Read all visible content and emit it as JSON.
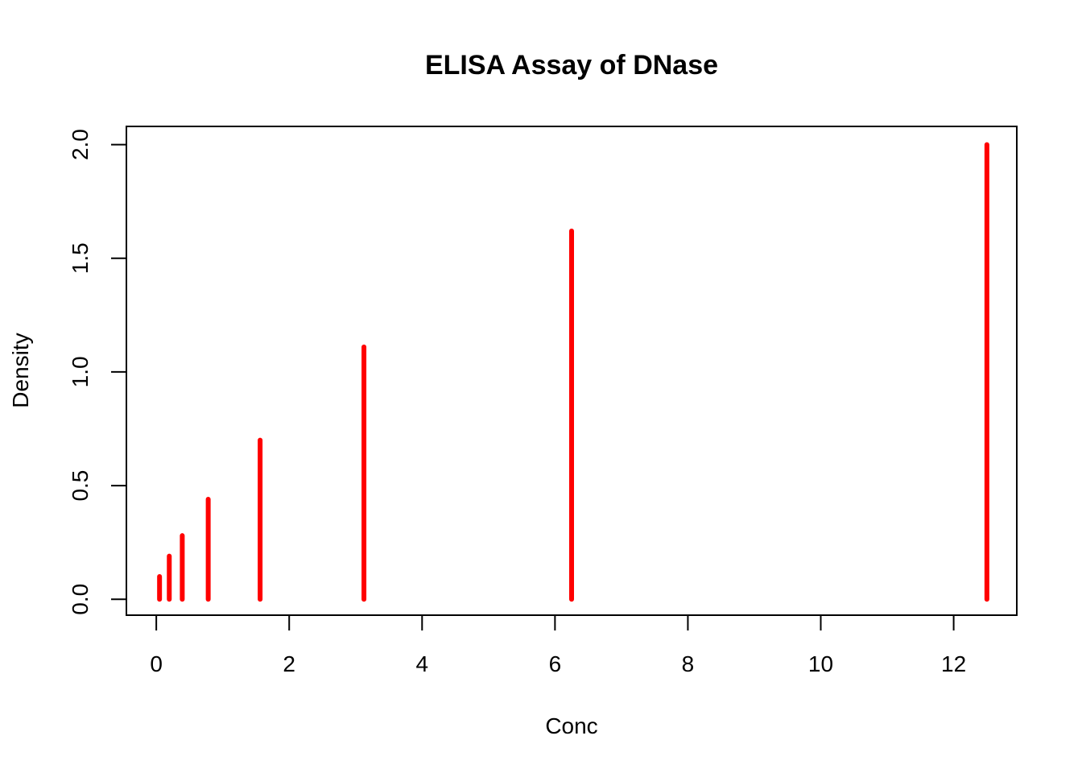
{
  "chart_data": {
    "type": "bar",
    "title": "ELISA Assay of DNase",
    "xlabel": "Conc",
    "ylabel": "Density",
    "xlim": [
      -0.45,
      12.95
    ],
    "ylim": [
      -0.07,
      2.08
    ],
    "x_ticks": [
      0,
      2,
      4,
      6,
      8,
      10,
      12
    ],
    "x_tick_labels": [
      "0",
      "2",
      "4",
      "6",
      "8",
      "10",
      "12"
    ],
    "y_ticks": [
      0.0,
      0.5,
      1.0,
      1.5,
      2.0
    ],
    "y_tick_labels": [
      "0.0",
      "0.5",
      "1.0",
      "1.5",
      "2.0"
    ],
    "grid": false,
    "legend": "none",
    "series": [
      {
        "color": "#ff0000",
        "x": [
          0.04882812,
          0.1953125,
          0.390625,
          0.78125,
          1.5625,
          3.125,
          6.25,
          12.5
        ],
        "values": [
          0.1,
          0.19,
          0.28,
          0.44,
          0.7,
          1.11,
          1.62,
          2.0
        ]
      }
    ]
  }
}
